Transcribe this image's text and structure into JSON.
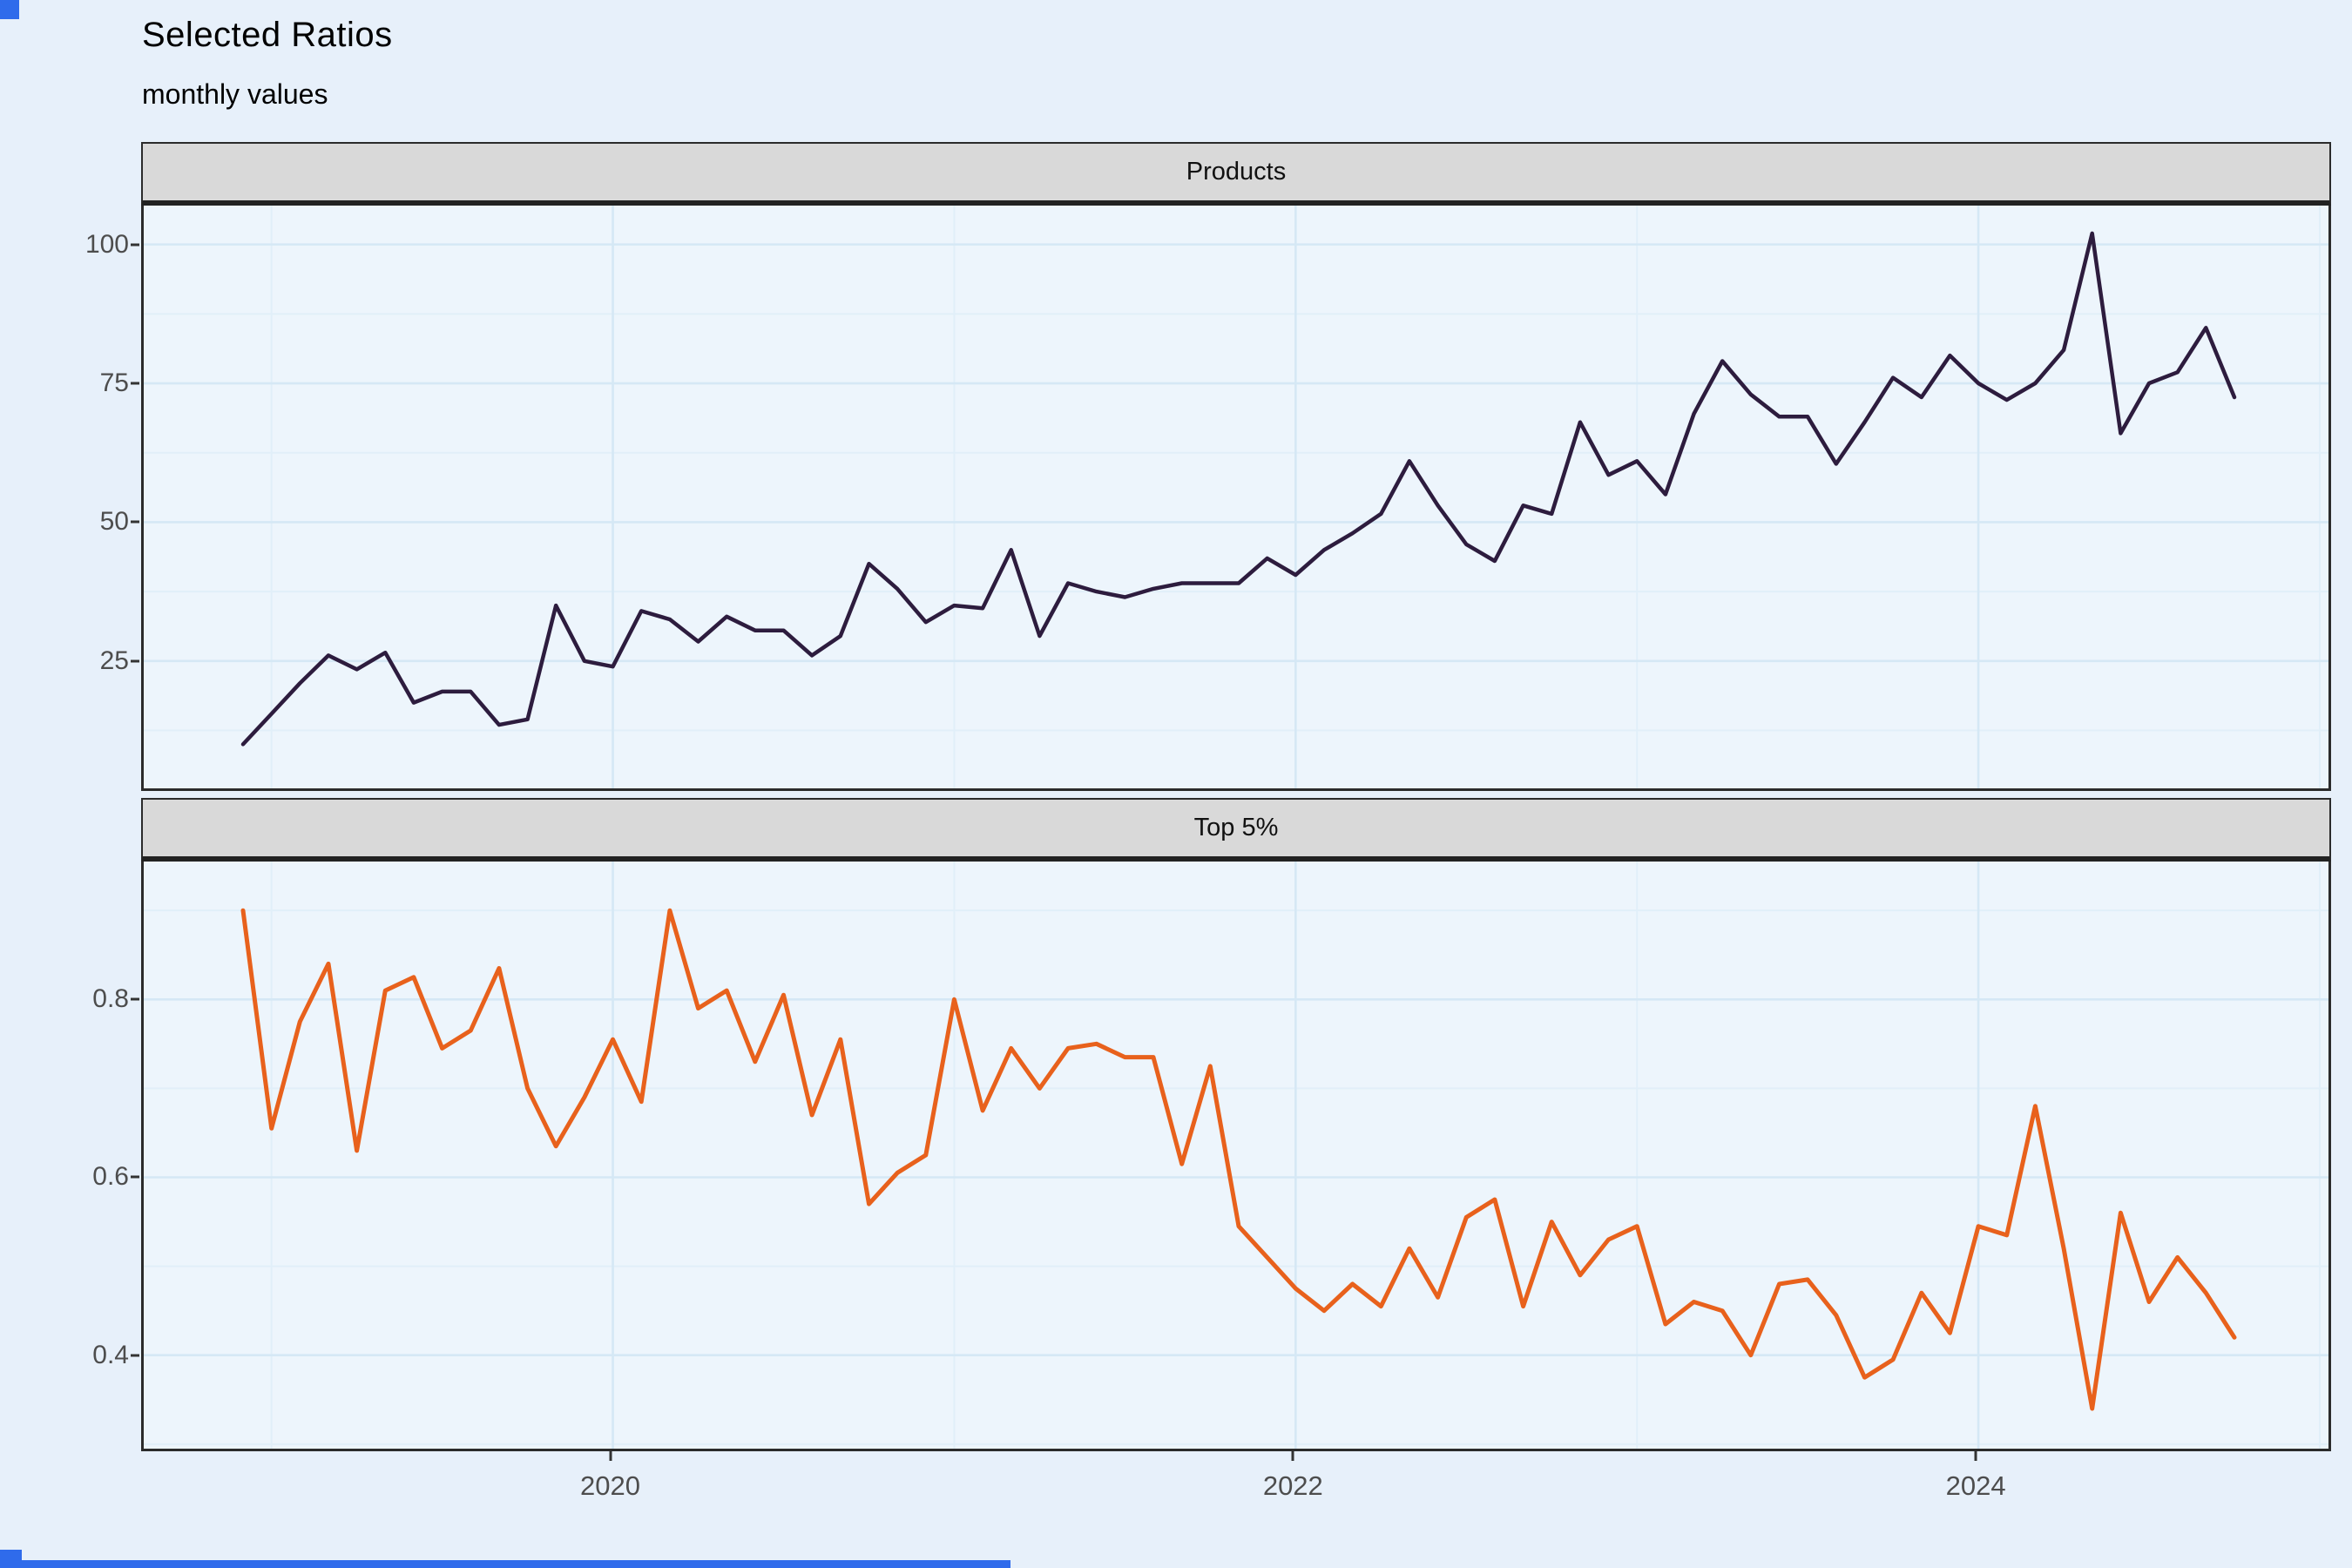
{
  "title": "Selected Ratios",
  "subtitle": "monthly values",
  "colors": {
    "page_bg": "#E7F0FA",
    "panel_bg": "#EDF5FC",
    "grid_major": "#D5E8F5",
    "grid_minor": "#E1EFF9",
    "strip_bg": "#D9D9D9",
    "panel_border": "#2B2B2B",
    "axis_text": "#4D4D4D",
    "products_line": "#2D1C3E",
    "top5_line": "#E8611C",
    "accent_blue": "#2F6BEB"
  },
  "x_axis": {
    "tick_labels": [
      "2020",
      "2022",
      "2024"
    ],
    "tick_month_index": [
      13,
      37,
      61
    ],
    "minor_month_index": [
      1,
      25,
      49,
      73
    ]
  },
  "chart_data": [
    {
      "type": "line",
      "title": "Selected Ratios",
      "subtitle": "monthly values",
      "facet_label": "Products",
      "legend_position": "none",
      "grid": "on",
      "xlabel": "",
      "ylabel": "",
      "yticks": [
        25,
        50,
        75,
        100
      ],
      "ylim": [
        1.6,
        107
      ],
      "x": [
        "2018-12",
        "2019-01",
        "2019-02",
        "2019-03",
        "2019-04",
        "2019-05",
        "2019-06",
        "2019-07",
        "2019-08",
        "2019-09",
        "2019-10",
        "2019-11",
        "2019-12",
        "2020-01",
        "2020-02",
        "2020-03",
        "2020-04",
        "2020-05",
        "2020-06",
        "2020-07",
        "2020-08",
        "2020-09",
        "2020-10",
        "2020-11",
        "2020-12",
        "2021-01",
        "2021-02",
        "2021-03",
        "2021-04",
        "2021-05",
        "2021-06",
        "2021-07",
        "2021-08",
        "2021-09",
        "2021-10",
        "2021-11",
        "2021-12",
        "2022-01",
        "2022-02",
        "2022-03",
        "2022-04",
        "2022-05",
        "2022-06",
        "2022-07",
        "2022-08",
        "2022-09",
        "2022-10",
        "2022-11",
        "2022-12",
        "2023-01",
        "2023-02",
        "2023-03",
        "2023-04",
        "2023-05",
        "2023-06",
        "2023-07",
        "2023-08",
        "2023-09",
        "2023-10",
        "2023-11",
        "2023-12",
        "2024-01",
        "2024-02",
        "2024-03",
        "2024-04",
        "2024-05",
        "2024-06",
        "2024-07",
        "2024-08",
        "2024-09",
        "2024-10"
      ],
      "values": [
        10,
        15.5,
        21,
        26,
        23.5,
        26.5,
        17.5,
        19.5,
        19.5,
        13.5,
        14.5,
        35,
        25,
        24,
        34,
        32.5,
        28.5,
        33,
        30.5,
        30.5,
        26,
        29.5,
        42.5,
        38,
        32,
        35,
        34.5,
        45,
        29.5,
        39,
        37.5,
        36.5,
        38,
        39,
        39,
        39,
        43.5,
        40.5,
        45,
        48,
        51.5,
        61,
        53,
        46,
        43,
        53,
        51.5,
        68,
        58.5,
        61,
        55,
        69.5,
        79,
        73,
        69,
        69,
        60.5,
        68,
        76,
        72.5,
        80,
        75,
        72,
        75,
        81,
        102,
        66,
        75,
        77,
        85,
        72.5
      ]
    },
    {
      "type": "line",
      "facet_label": "Top 5%",
      "legend_position": "none",
      "grid": "on",
      "xlabel": "",
      "ylabel": "",
      "yticks": [
        0.4,
        0.6,
        0.8
      ],
      "ylim": [
        0.292,
        0.955
      ],
      "x": [
        "2018-12",
        "2019-01",
        "2019-02",
        "2019-03",
        "2019-04",
        "2019-05",
        "2019-06",
        "2019-07",
        "2019-08",
        "2019-09",
        "2019-10",
        "2019-11",
        "2019-12",
        "2020-01",
        "2020-02",
        "2020-03",
        "2020-04",
        "2020-05",
        "2020-06",
        "2020-07",
        "2020-08",
        "2020-09",
        "2020-10",
        "2020-11",
        "2020-12",
        "2021-01",
        "2021-02",
        "2021-03",
        "2021-04",
        "2021-05",
        "2021-06",
        "2021-07",
        "2021-08",
        "2021-09",
        "2021-10",
        "2021-11",
        "2021-12",
        "2022-01",
        "2022-02",
        "2022-03",
        "2022-04",
        "2022-05",
        "2022-06",
        "2022-07",
        "2022-08",
        "2022-09",
        "2022-10",
        "2022-11",
        "2022-12",
        "2023-01",
        "2023-02",
        "2023-03",
        "2023-04",
        "2023-05",
        "2023-06",
        "2023-07",
        "2023-08",
        "2023-09",
        "2023-10",
        "2023-11",
        "2023-12",
        "2024-01",
        "2024-02",
        "2024-03",
        "2024-04",
        "2024-05",
        "2024-06",
        "2024-07",
        "2024-08",
        "2024-09",
        "2024-10"
      ],
      "values": [
        0.9,
        0.655,
        0.775,
        0.84,
        0.63,
        0.81,
        0.825,
        0.745,
        0.765,
        0.835,
        0.7,
        0.635,
        0.69,
        0.755,
        0.685,
        0.9,
        0.79,
        0.81,
        0.73,
        0.805,
        0.67,
        0.755,
        0.57,
        0.605,
        0.625,
        0.8,
        0.675,
        0.745,
        0.7,
        0.745,
        0.75,
        0.735,
        0.735,
        0.615,
        0.725,
        0.545,
        0.51,
        0.475,
        0.45,
        0.48,
        0.455,
        0.52,
        0.465,
        0.555,
        0.575,
        0.455,
        0.55,
        0.49,
        0.53,
        0.545,
        0.435,
        0.46,
        0.45,
        0.4,
        0.48,
        0.485,
        0.445,
        0.375,
        0.395,
        0.47,
        0.425,
        0.545,
        0.535,
        0.68,
        0.52,
        0.34,
        0.56,
        0.46,
        0.51,
        0.47,
        0.42
      ]
    }
  ]
}
